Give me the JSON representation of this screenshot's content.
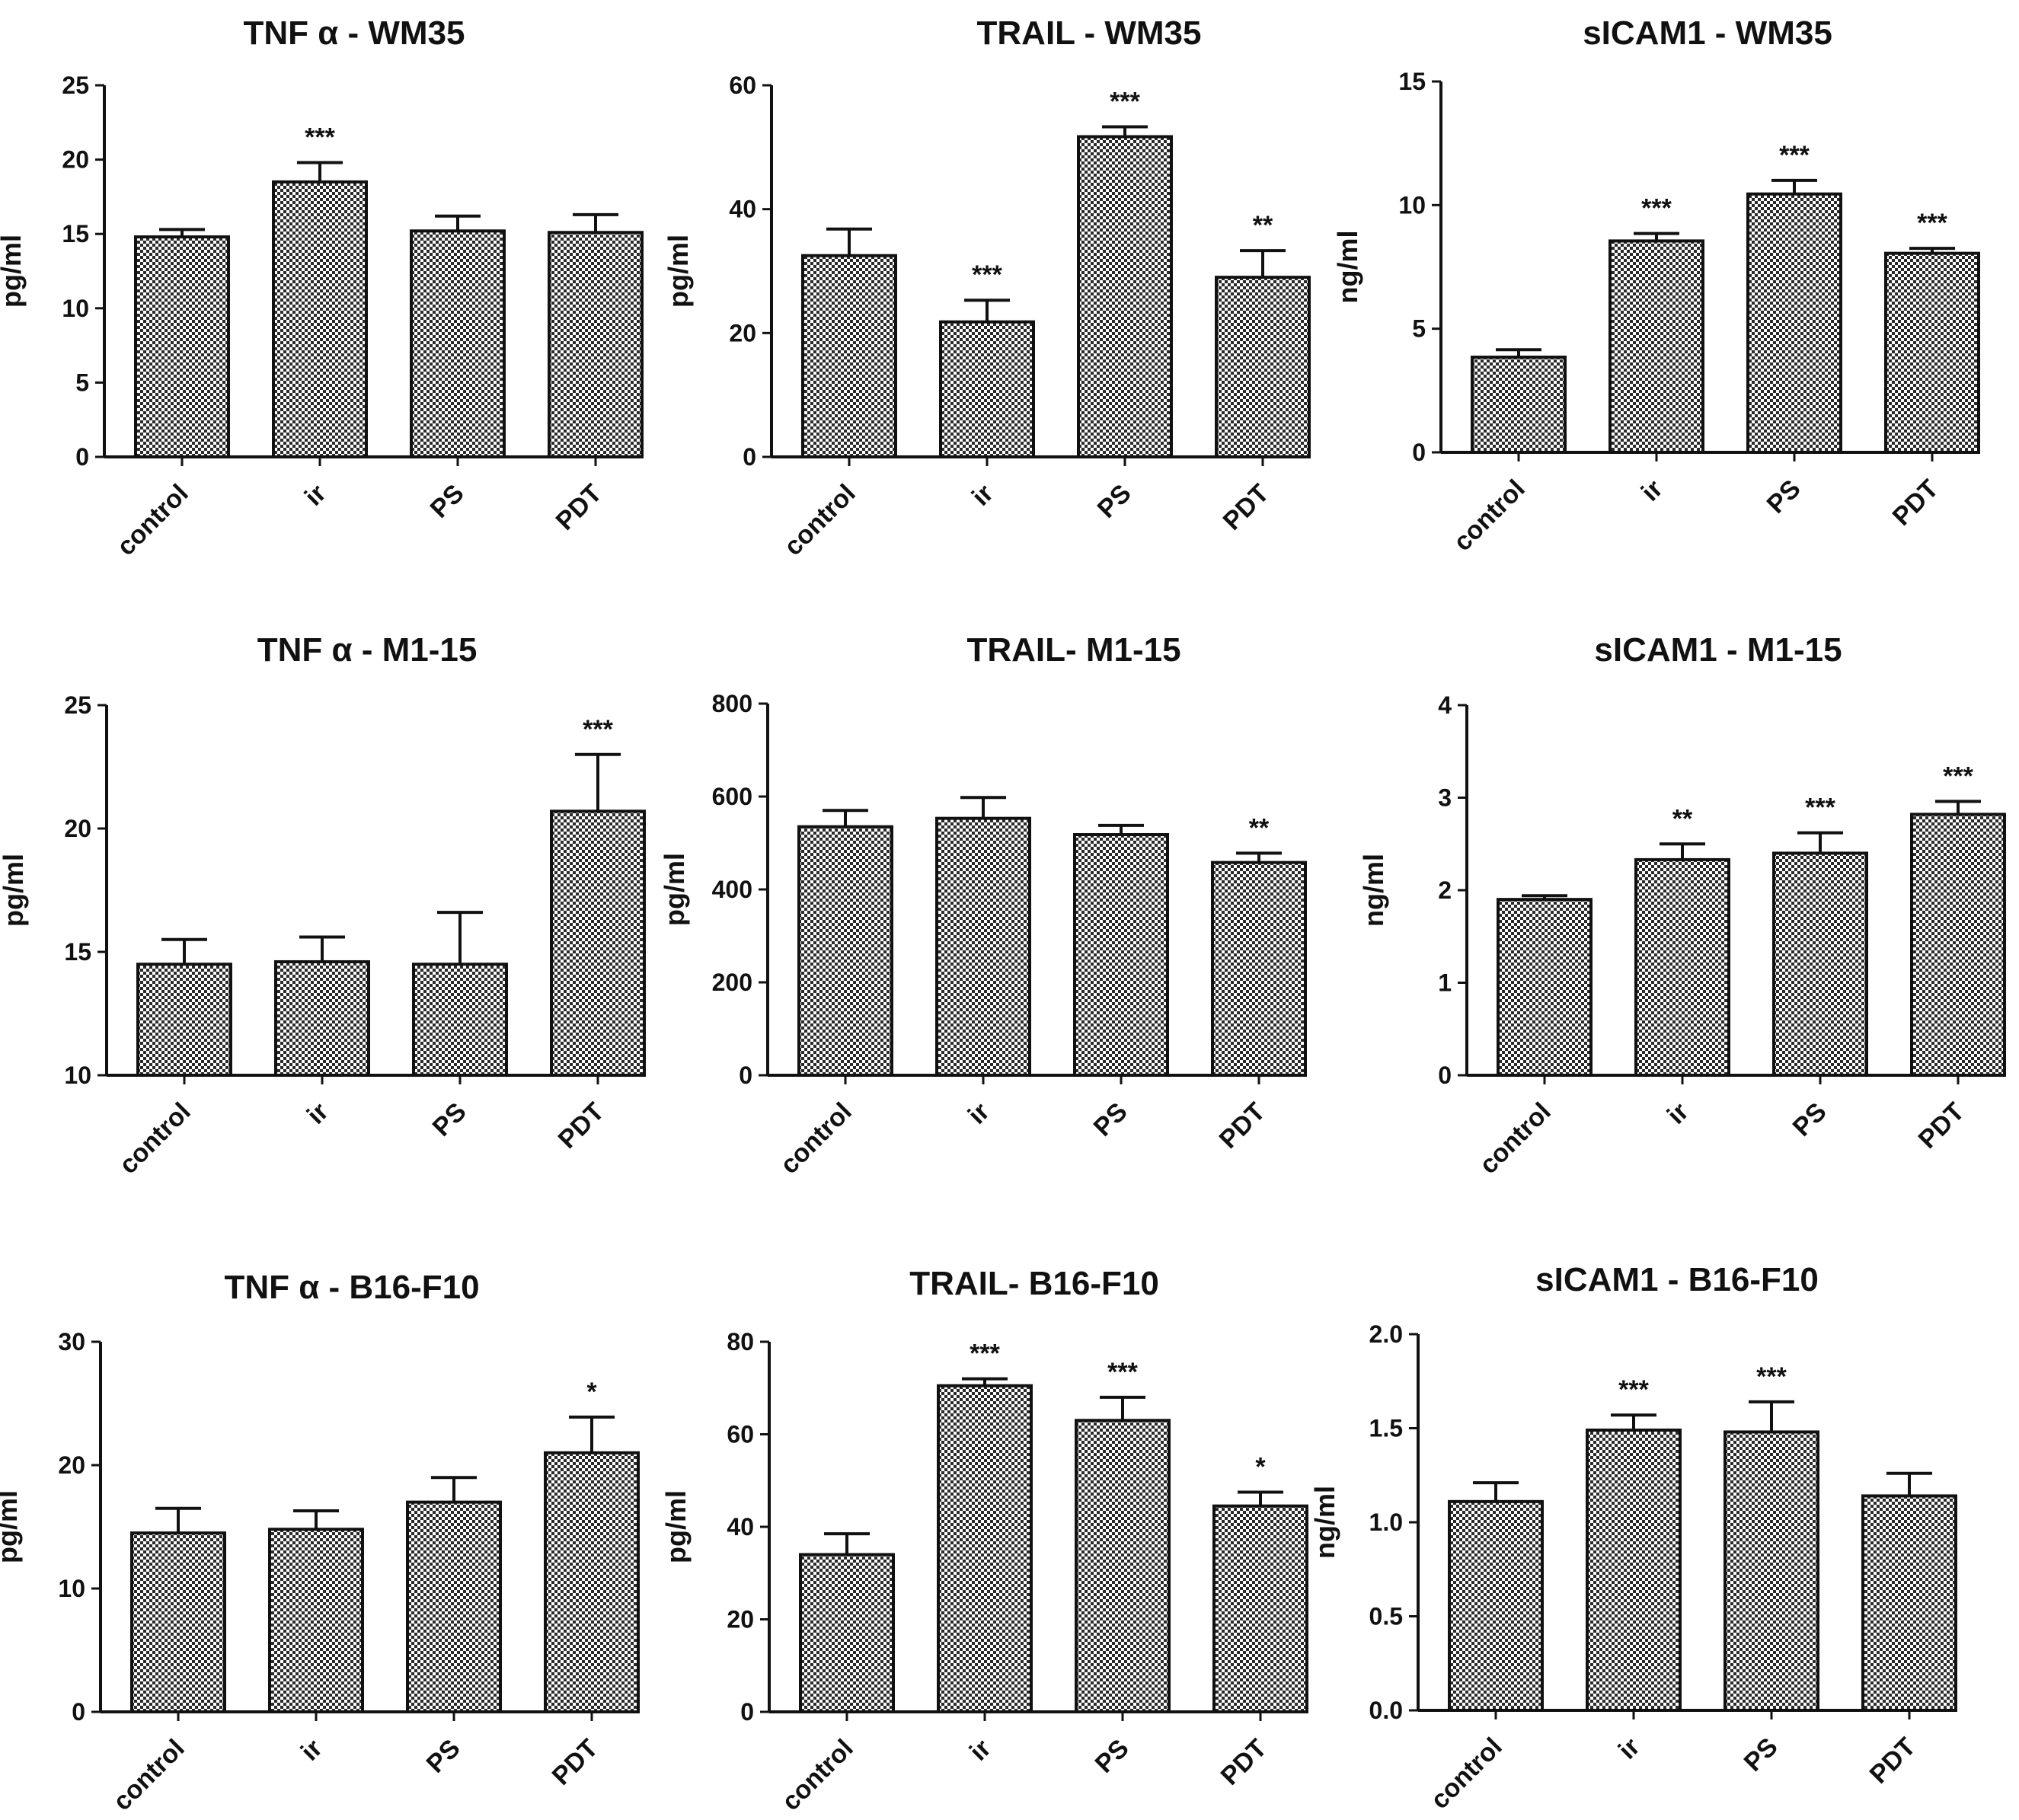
{
  "figure": {
    "hatch_color": "#2a2a2a",
    "axis_color": "#111111"
  },
  "chart_data": [
    {
      "type": "bar",
      "title": "TNF α - WM35",
      "ylabel": "pg/ml",
      "categories": [
        "control",
        "ir",
        "PS",
        "PDT"
      ],
      "values": [
        14.8,
        18.5,
        15.2,
        15.1
      ],
      "errors": [
        0.5,
        1.3,
        1.0,
        1.2
      ],
      "significance": [
        "",
        "***",
        "",
        ""
      ],
      "ylim": [
        0,
        25
      ],
      "yticks": [
        "0",
        "5",
        "10",
        "15",
        "20",
        "25"
      ]
    },
    {
      "type": "bar",
      "title": "TRAIL - WM35",
      "ylabel": "pg/ml",
      "categories": [
        "control",
        "ir",
        "PS",
        "PDT"
      ],
      "values": [
        32.5,
        21.8,
        51.7,
        29.0
      ],
      "errors": [
        4.3,
        3.5,
        1.6,
        4.3
      ],
      "significance": [
        "",
        "***",
        "***",
        "**"
      ],
      "ylim": [
        0,
        60
      ],
      "yticks": [
        "0",
        "20",
        "40",
        "60"
      ]
    },
    {
      "type": "bar",
      "title": "sICAM1 - WM35",
      "ylabel": "ng/ml",
      "categories": [
        "control",
        "ir",
        "PS",
        "PDT"
      ],
      "values": [
        3.85,
        8.55,
        10.45,
        8.05
      ],
      "errors": [
        0.3,
        0.3,
        0.55,
        0.2
      ],
      "significance": [
        "",
        "***",
        "***",
        "***"
      ],
      "ylim": [
        0,
        15
      ],
      "yticks": [
        "0",
        "5",
        "10",
        "15"
      ]
    },
    {
      "type": "bar",
      "title": "TNF α - M1-15",
      "ylabel": "pg/ml",
      "categories": [
        "control",
        "ir",
        "PS",
        "PDT"
      ],
      "values": [
        14.5,
        14.6,
        14.5,
        20.7
      ],
      "errors": [
        1.0,
        1.0,
        2.1,
        2.3
      ],
      "significance": [
        "",
        "",
        "",
        "***"
      ],
      "ylim": [
        10,
        25
      ],
      "yticks": [
        "10",
        "15",
        "20",
        "25"
      ]
    },
    {
      "type": "bar",
      "title": "TRAIL- M1-15",
      "ylabel": "pg/ml",
      "categories": [
        "control",
        "ir",
        "PS",
        "PDT"
      ],
      "values": [
        535,
        553,
        518,
        458
      ],
      "errors": [
        35,
        45,
        20,
        20
      ],
      "significance": [
        "",
        "",
        "",
        "**"
      ],
      "ylim": [
        0,
        800
      ],
      "yticks": [
        "0",
        "200",
        "400",
        "600",
        "800"
      ]
    },
    {
      "type": "bar",
      "title": "sICAM1 - M1-15",
      "ylabel": "ng/ml",
      "categories": [
        "control",
        "ir",
        "PS",
        "PDT"
      ],
      "values": [
        1.9,
        2.33,
        2.4,
        2.82
      ],
      "errors": [
        0.04,
        0.17,
        0.22,
        0.14
      ],
      "significance": [
        "",
        "**",
        "***",
        "***"
      ],
      "ylim": [
        0,
        4
      ],
      "yticks": [
        "0",
        "1",
        "2",
        "3",
        "4"
      ]
    },
    {
      "type": "bar",
      "title": "TNF α - B16-F10",
      "ylabel": "pg/ml",
      "categories": [
        "control",
        "ir",
        "PS",
        "PDT"
      ],
      "values": [
        14.5,
        14.8,
        17.0,
        21.0
      ],
      "errors": [
        2.0,
        1.5,
        2.0,
        2.9
      ],
      "significance": [
        "",
        "",
        "",
        "*"
      ],
      "ylim": [
        0,
        30
      ],
      "yticks": [
        "0",
        "10",
        "20",
        "30"
      ]
    },
    {
      "type": "bar",
      "title": "TRAIL- B16-F10",
      "ylabel": "pg/ml",
      "categories": [
        "control",
        "ir",
        "PS",
        "PDT"
      ],
      "values": [
        34.0,
        70.5,
        63.0,
        44.5
      ],
      "errors": [
        4.5,
        1.5,
        5.0,
        3.0
      ],
      "significance": [
        "",
        "***",
        "***",
        "*"
      ],
      "ylim": [
        0,
        80
      ],
      "yticks": [
        "0",
        "20",
        "40",
        "60",
        "80"
      ]
    },
    {
      "type": "bar",
      "title": "sICAM1 - B16-F10",
      "ylabel": "ng/ml",
      "categories": [
        "control",
        "ir",
        "PS",
        "PDT"
      ],
      "values": [
        1.11,
        1.49,
        1.48,
        1.14
      ],
      "errors": [
        0.1,
        0.08,
        0.16,
        0.12
      ],
      "significance": [
        "",
        "***",
        "***",
        ""
      ],
      "ylim": [
        0,
        2.0
      ],
      "yticks": [
        "0.0",
        "0.5",
        "1.0",
        "1.5",
        "2.0"
      ]
    }
  ]
}
